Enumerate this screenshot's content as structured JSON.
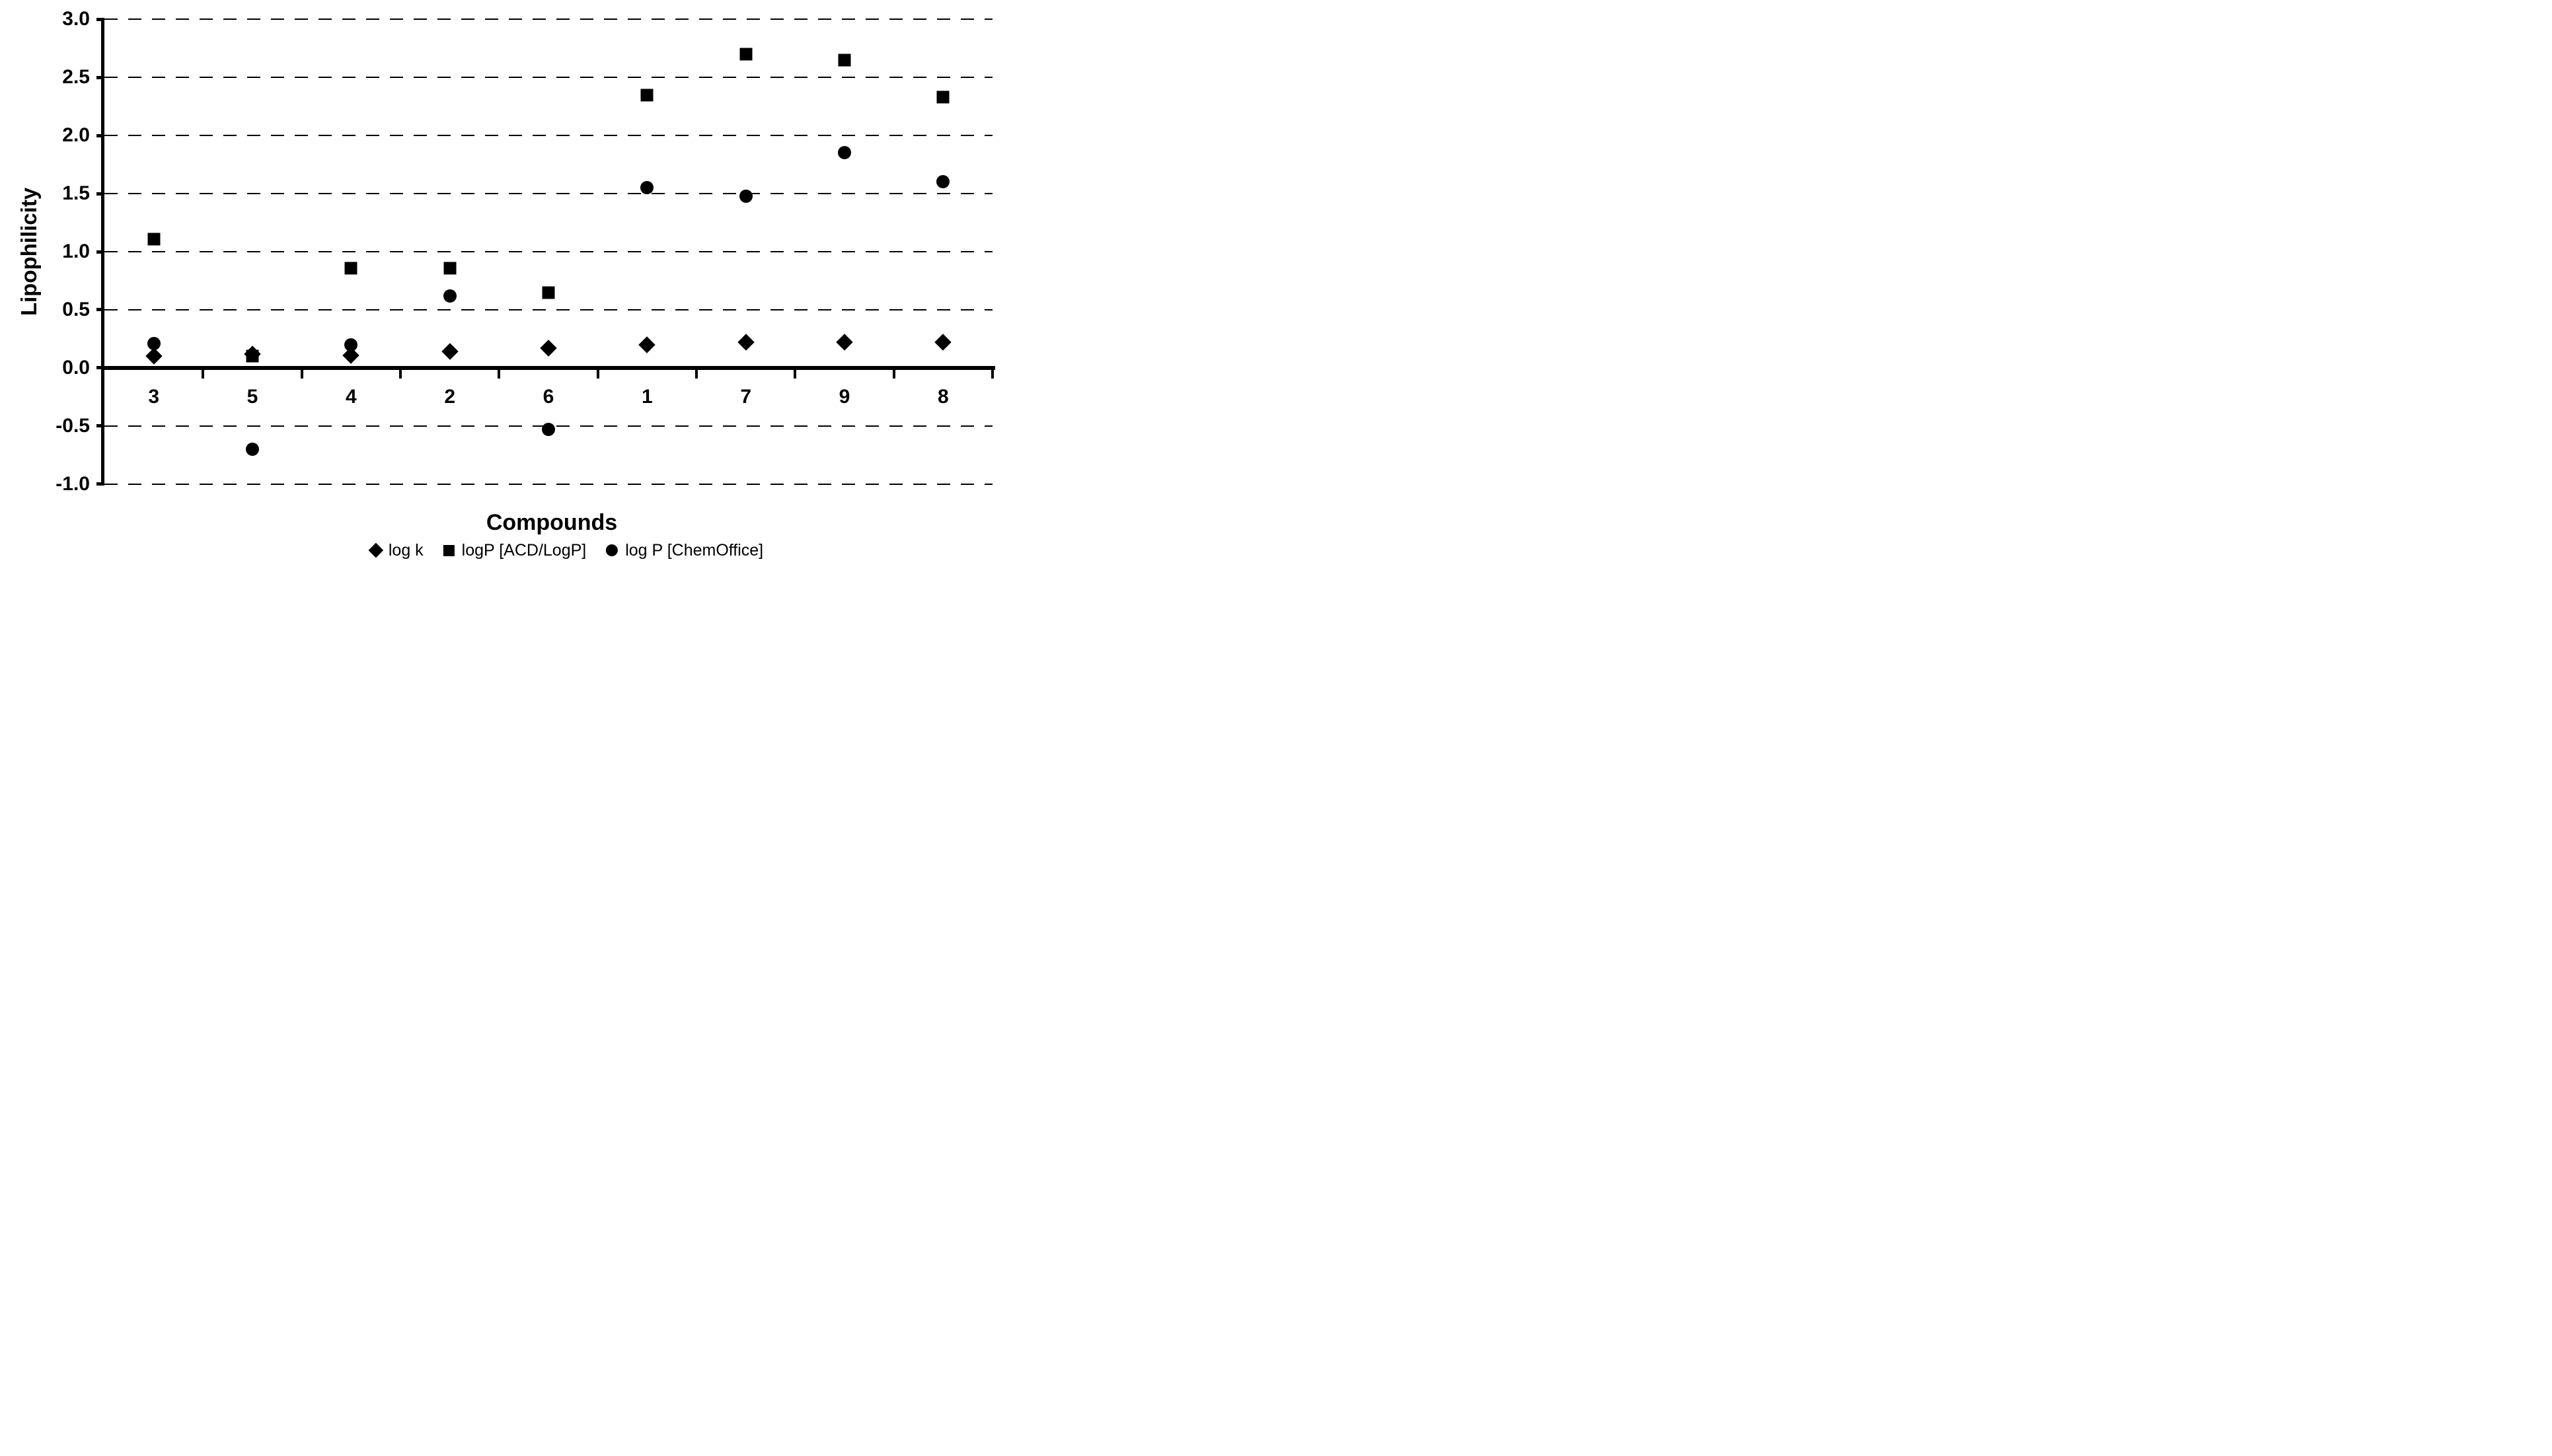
{
  "chart_data": {
    "type": "scatter",
    "title": "",
    "xlabel": "Compounds",
    "ylabel": "Lipophilicity",
    "ylim": [
      -1.0,
      3.0
    ],
    "ytick_step": 0.5,
    "ytick_labels": [
      "3.0",
      "2.5",
      "2.0",
      "1.5",
      "1.0",
      "0.5",
      "0.0",
      "-0.5",
      "-1.0"
    ],
    "grid": "horizontal-dashed",
    "legend_position": "bottom-center",
    "categories": [
      "3",
      "5",
      "4",
      "2",
      "6",
      "1",
      "7",
      "9",
      "8"
    ],
    "series": [
      {
        "name": "log k",
        "marker": "diamond",
        "values": [
          0.1,
          0.12,
          0.11,
          0.14,
          0.17,
          0.2,
          0.22,
          0.22,
          0.22
        ]
      },
      {
        "name": "logP [ACD/LogP]",
        "marker": "square",
        "values": [
          1.11,
          0.1,
          0.86,
          0.86,
          0.65,
          2.35,
          2.7,
          2.65,
          2.33
        ]
      },
      {
        "name": "log P [ChemOffice]",
        "marker": "circle",
        "values": [
          0.21,
          -0.7,
          0.2,
          0.62,
          -0.53,
          1.55,
          1.48,
          1.85,
          1.6
        ]
      }
    ],
    "colors": {
      "marker": "#000000",
      "grid": "#000000",
      "axis": "#000000",
      "background": "#ffffff",
      "text": "#000000"
    }
  }
}
